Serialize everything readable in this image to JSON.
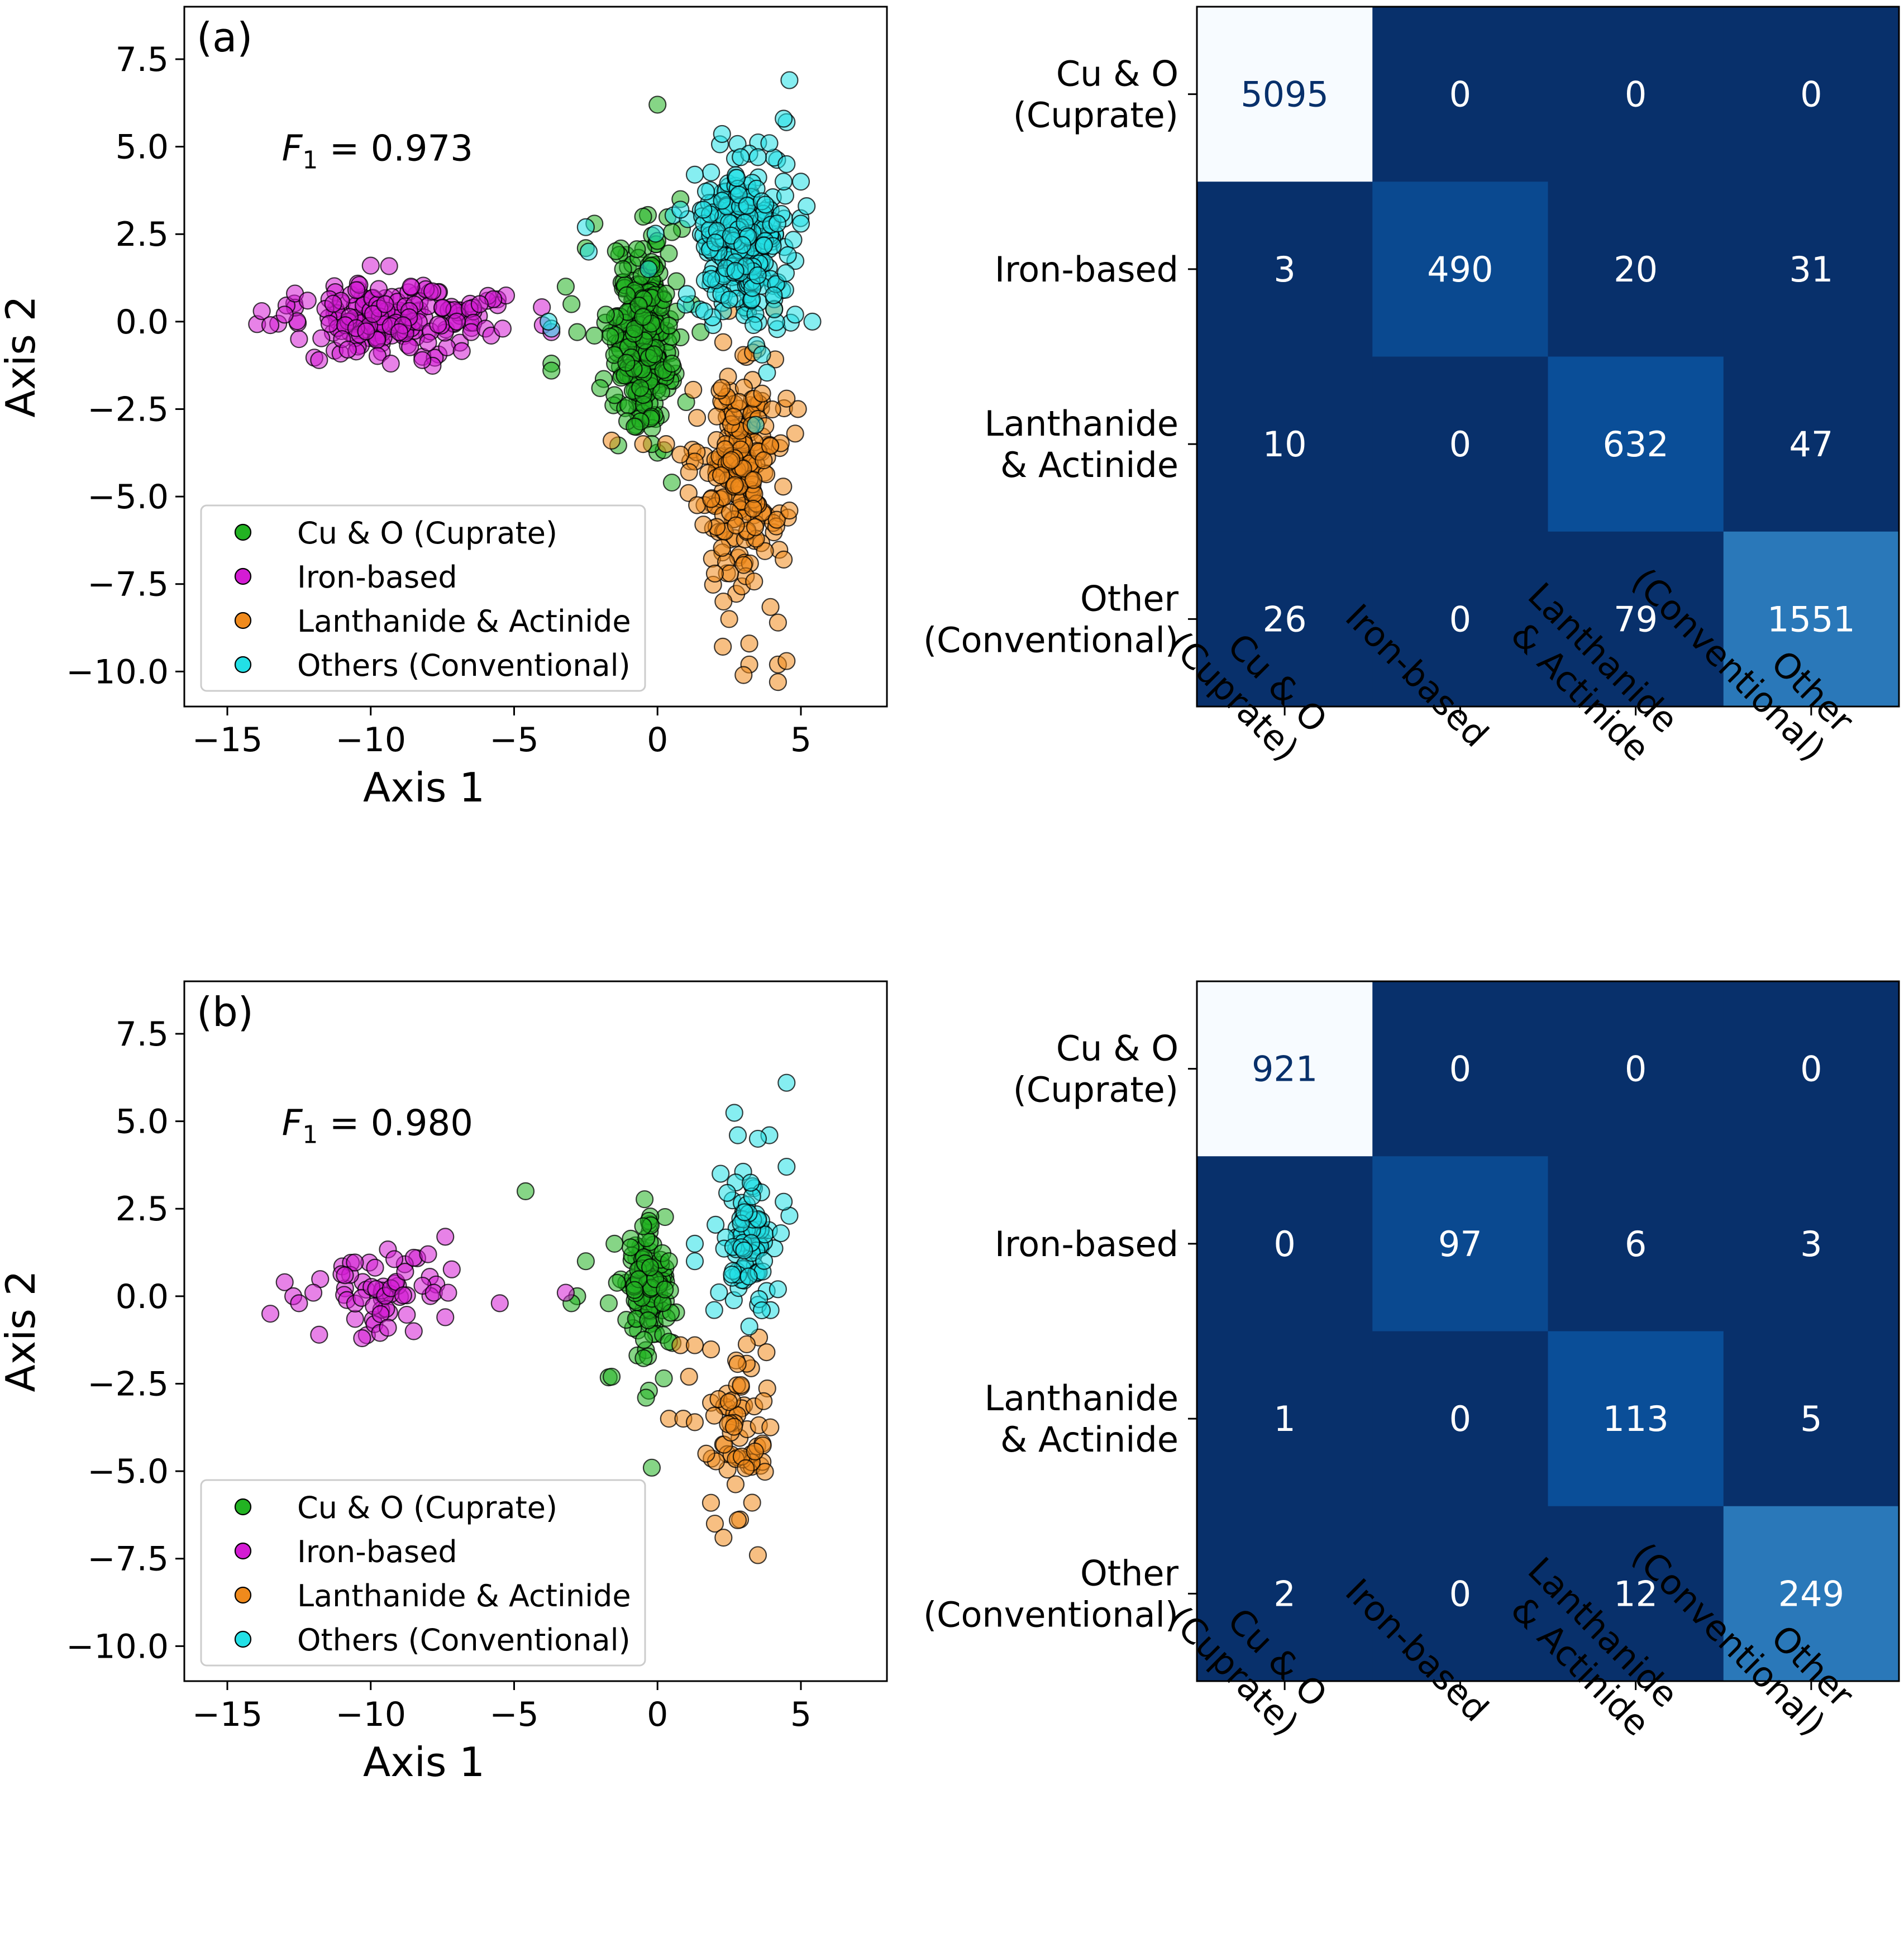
{
  "chart_data": [
    {
      "panel_label": "(a)",
      "type": "scatter",
      "xlabel": "Axis 1",
      "ylabel": "Axis 2",
      "xlim": [
        -16.5,
        8.0
      ],
      "ylim": [
        -11.0,
        9.0
      ],
      "xticks": [
        -15,
        -10,
        -5,
        0,
        5
      ],
      "xtick_labels": [
        "−15",
        "−10",
        "−5",
        "0",
        "5"
      ],
      "yticks": [
        7.5,
        5.0,
        2.5,
        0.0,
        -2.5,
        -5.0,
        -7.5,
        -10.0
      ],
      "ytick_labels": [
        "7.5",
        "5.0",
        "2.5",
        "0.0",
        "−2.5",
        "−5.0",
        "−7.5",
        "−10.0"
      ],
      "annotation": {
        "prefix": "F",
        "subscript": "1",
        "suffix": " =  0.973"
      },
      "legend": {
        "position": "lower-left",
        "entries": [
          "Cu & O (Cuprate)",
          "Iron-based",
          "Lanthanide & Actinide",
          "Others (Conventional)"
        ]
      },
      "series": [
        {
          "name": "Cu & O (Cuprate)",
          "color": "#22b322",
          "points": [
            [
              0.0,
              6.2
            ],
            [
              -2.2,
              2.8
            ],
            [
              -2.5,
              2.1
            ],
            [
              -3.2,
              1.0
            ],
            [
              -3.0,
              0.5
            ],
            [
              -2.8,
              -0.3
            ],
            [
              -3.7,
              -1.2
            ],
            [
              -3.7,
              -1.4
            ],
            [
              -2.0,
              -1.9
            ],
            [
              -1.5,
              -2.1
            ],
            [
              -0.8,
              -3.0
            ],
            [
              -0.2,
              -3.5
            ],
            [
              0.5,
              -4.6
            ],
            [
              -1.2,
              1.5
            ],
            [
              -1.8,
              0.2
            ],
            [
              -2.2,
              -0.4
            ],
            [
              0.3,
              0.8
            ],
            [
              0.5,
              -1.2
            ],
            [
              1.0,
              -2.3
            ],
            [
              0.8,
              3.5
            ],
            [
              -0.5,
              3.0
            ],
            [
              1.2,
              0.5
            ],
            [
              1.5,
              -0.3
            ]
          ],
          "cluster": {
            "cx": -0.5,
            "cy": -0.5,
            "sx": 0.5,
            "sy": 1.3,
            "n": 300
          }
        },
        {
          "name": "Iron-based",
          "color": "#d41cd4",
          "points": [
            [
              -13.8,
              0.3
            ],
            [
              -13.5,
              -0.1
            ],
            [
              -13.0,
              0.2
            ],
            [
              -12.5,
              -0.5
            ],
            [
              -12.2,
              0.6
            ],
            [
              -11.8,
              -1.1
            ],
            [
              -11.0,
              -0.5
            ],
            [
              -10.5,
              0.9
            ],
            [
              -10.0,
              1.6
            ],
            [
              -9.5,
              0.5
            ],
            [
              -9.0,
              -0.3
            ],
            [
              -8.6,
              1.0
            ],
            [
              -8.0,
              -0.6
            ],
            [
              -7.5,
              0.4
            ],
            [
              -7.0,
              0.0
            ],
            [
              -6.5,
              -0.3
            ],
            [
              -6.2,
              0.5
            ],
            [
              -6.0,
              -0.2
            ],
            [
              -5.8,
              -0.4
            ],
            [
              -5.4,
              -0.2
            ],
            [
              -4.0,
              -0.1
            ],
            [
              -3.7,
              -0.3
            ],
            [
              -8.2,
              -1.1
            ],
            [
              -9.3,
              -1.2
            ],
            [
              -10.8,
              -0.8
            ]
          ],
          "cluster": {
            "cx": -9.3,
            "cy": 0.1,
            "sx": 1.7,
            "sy": 0.5,
            "n": 180
          }
        },
        {
          "name": "Lanthanide & Actinide",
          "color": "#f08a1c",
          "points": [
            [
              -1.6,
              -3.4
            ],
            [
              -0.5,
              -3.5
            ],
            [
              0.3,
              -3.5
            ],
            [
              1.3,
              -4.0
            ],
            [
              1.6,
              -5.8
            ],
            [
              2.0,
              -7.2
            ],
            [
              2.3,
              -8.0
            ],
            [
              2.5,
              -8.5
            ],
            [
              3.2,
              -9.2
            ],
            [
              3.2,
              -9.8
            ],
            [
              3.0,
              -10.1
            ],
            [
              4.2,
              -9.8
            ],
            [
              4.5,
              -9.7
            ],
            [
              4.2,
              -10.3
            ],
            [
              4.2,
              -8.6
            ],
            [
              4.4,
              -6.8
            ],
            [
              4.6,
              -5.4
            ],
            [
              4.8,
              -3.2
            ],
            [
              4.5,
              -2.2
            ],
            [
              0.8,
              -3.8
            ],
            [
              1.1,
              -4.3
            ]
          ],
          "cluster": {
            "cx": 2.9,
            "cy": -4.2,
            "sx": 0.7,
            "sy": 1.7,
            "n": 220
          }
        },
        {
          "name": "Others (Conventional)",
          "color": "#22e0e6",
          "points": [
            [
              4.6,
              6.9
            ],
            [
              4.5,
              5.7
            ],
            [
              4.4,
              5.8
            ],
            [
              3.9,
              5.1
            ],
            [
              3.2,
              4.8
            ],
            [
              3.5,
              4.7
            ],
            [
              2.9,
              4.7
            ],
            [
              4.5,
              4.5
            ],
            [
              5.0,
              4.0
            ],
            [
              5.2,
              3.3
            ],
            [
              5.0,
              2.8
            ],
            [
              5.4,
              0.0
            ],
            [
              4.8,
              0.2
            ],
            [
              -2.5,
              2.7
            ],
            [
              -2.4,
              2.0
            ],
            [
              0.8,
              3.2
            ],
            [
              1.3,
              4.2
            ],
            [
              1.6,
              3.2
            ],
            [
              -3.7,
              -0.2
            ],
            [
              -3.8,
              0.0
            ]
          ],
          "cluster": {
            "cx": 2.9,
            "cy": 2.2,
            "sx": 0.8,
            "sy": 1.2,
            "n": 280
          }
        }
      ]
    },
    {
      "type": "heatmap",
      "row_labels": [
        [
          "Cu & O",
          "(Cuprate)"
        ],
        [
          "Iron-based"
        ],
        [
          "Lanthanide",
          "& Actinide"
        ],
        [
          "Other",
          "(Conventional)"
        ]
      ],
      "col_labels": [
        [
          "Cu & O",
          "(Cuprate)"
        ],
        [
          "Iron-based"
        ],
        [
          "Lanthanide",
          "& Actinide"
        ],
        [
          "Other",
          "(Conventional)"
        ]
      ],
      "values": [
        [
          5095,
          0,
          0,
          0
        ],
        [
          3,
          490,
          20,
          31
        ],
        [
          10,
          0,
          632,
          47
        ],
        [
          26,
          0,
          79,
          1551
        ]
      ],
      "cell_colors": [
        [
          "#f7fbff",
          "#08306b",
          "#08306b",
          "#08306b"
        ],
        [
          "#08306b",
          "#0a4990",
          "#08306b",
          "#08306b"
        ],
        [
          "#08306b",
          "#08306b",
          "#0a4e98",
          "#08306b"
        ],
        [
          "#08306b",
          "#08306b",
          "#08306b",
          "#2a78b9"
        ]
      ]
    },
    {
      "panel_label": "(b)",
      "type": "scatter",
      "xlabel": "Axis 1",
      "ylabel": "Axis 2",
      "xlim": [
        -16.5,
        8.0
      ],
      "ylim": [
        -11.0,
        9.0
      ],
      "xticks": [
        -15,
        -10,
        -5,
        0,
        5
      ],
      "xtick_labels": [
        "−15",
        "−10",
        "−5",
        "0",
        "5"
      ],
      "yticks": [
        7.5,
        5.0,
        2.5,
        0.0,
        -2.5,
        -5.0,
        -7.5,
        -10.0
      ],
      "ytick_labels": [
        "7.5",
        "5.0",
        "2.5",
        "0.0",
        "−2.5",
        "−5.0",
        "−7.5",
        "−10.0"
      ],
      "annotation": {
        "prefix": "F",
        "subscript": "1",
        "suffix": " =  0.980"
      },
      "legend": {
        "position": "lower-left",
        "entries": [
          "Cu & O (Cuprate)",
          "Iron-based",
          "Lanthanide & Actinide",
          "Others (Conventional)"
        ]
      },
      "series": [
        {
          "name": "Cu & O (Cuprate)",
          "color": "#22b322",
          "points": [
            [
              -4.6,
              3.0
            ],
            [
              -2.5,
              1.0
            ],
            [
              -2.8,
              0.0
            ],
            [
              -3.0,
              -0.2
            ],
            [
              -1.5,
              1.5
            ],
            [
              -1.7,
              -0.2
            ],
            [
              -1.6,
              -2.3
            ],
            [
              -0.3,
              -2.7
            ],
            [
              -0.2,
              -4.9
            ],
            [
              -0.4,
              -2.9
            ],
            [
              -0.5,
              2.0
            ],
            [
              0.4,
              1.0
            ],
            [
              0.4,
              -1.3
            ]
          ],
          "cluster": {
            "cx": -0.4,
            "cy": 0.1,
            "sx": 0.4,
            "sy": 0.9,
            "n": 120
          }
        },
        {
          "name": "Iron-based",
          "color": "#d41cd4",
          "points": [
            [
              -13.5,
              -0.5
            ],
            [
              -13.0,
              0.4
            ],
            [
              -12.7,
              0.0
            ],
            [
              -12.5,
              -0.2
            ],
            [
              -12.0,
              0.1
            ],
            [
              -11.8,
              -1.1
            ],
            [
              -10.9,
              0.6
            ],
            [
              -10.3,
              -1.2
            ],
            [
              -9.4,
              -0.9
            ],
            [
              -8.8,
              0.7
            ],
            [
              -8.5,
              1.1
            ],
            [
              -8.0,
              1.2
            ],
            [
              -7.8,
              0.1
            ],
            [
              -7.4,
              1.7
            ],
            [
              -7.4,
              -0.6
            ],
            [
              -7.3,
              0.1
            ],
            [
              -8.5,
              -1.0
            ],
            [
              -5.5,
              -0.2
            ],
            [
              -3.2,
              0.1
            ]
          ],
          "cluster": {
            "cx": -9.8,
            "cy": 0.1,
            "sx": 1.0,
            "sy": 0.45,
            "n": 50
          }
        },
        {
          "name": "Lanthanide & Actinide",
          "color": "#f08a1c",
          "points": [
            [
              0.8,
              -1.4
            ],
            [
              1.3,
              -1.4
            ],
            [
              1.1,
              -2.3
            ],
            [
              0.4,
              -3.5
            ],
            [
              0.9,
              -3.5
            ],
            [
              1.3,
              -3.6
            ],
            [
              1.7,
              -4.5
            ],
            [
              2.0,
              -6.5
            ],
            [
              2.3,
              -6.9
            ],
            [
              2.8,
              -6.4
            ],
            [
              3.5,
              -7.4
            ],
            [
              3.3,
              -5.9
            ],
            [
              3.7,
              -3.0
            ],
            [
              3.8,
              -1.6
            ]
          ],
          "cluster": {
            "cx": 2.8,
            "cy": -3.6,
            "sx": 0.5,
            "sy": 1.1,
            "n": 60
          }
        },
        {
          "name": "Others (Conventional)",
          "color": "#22e0e6",
          "points": [
            [
              4.5,
              6.1
            ],
            [
              3.9,
              4.6
            ],
            [
              3.5,
              4.5
            ],
            [
              2.8,
              4.6
            ],
            [
              4.5,
              3.7
            ],
            [
              4.6,
              2.3
            ],
            [
              4.4,
              2.7
            ],
            [
              2.2,
              3.5
            ],
            [
              1.3,
              1.0
            ],
            [
              1.3,
              1.5
            ],
            [
              4.3,
              1.8
            ],
            [
              4.2,
              0.2
            ]
          ],
          "cluster": {
            "cx": 3.1,
            "cy": 1.6,
            "sx": 0.5,
            "sy": 1.1,
            "n": 90
          }
        }
      ]
    },
    {
      "type": "heatmap",
      "row_labels": [
        [
          "Cu & O",
          "(Cuprate)"
        ],
        [
          "Iron-based"
        ],
        [
          "Lanthanide",
          "& Actinide"
        ],
        [
          "Other",
          "(Conventional)"
        ]
      ],
      "col_labels": [
        [
          "Cu & O",
          "(Cuprate)"
        ],
        [
          "Iron-based"
        ],
        [
          "Lanthanide",
          "& Actinide"
        ],
        [
          "Other",
          "(Conventional)"
        ]
      ],
      "values": [
        [
          921,
          0,
          0,
          0
        ],
        [
          0,
          97,
          6,
          3
        ],
        [
          1,
          0,
          113,
          5
        ],
        [
          2,
          0,
          12,
          249
        ]
      ],
      "cell_colors": [
        [
          "#f7fbff",
          "#08306b",
          "#08306b",
          "#08306b"
        ],
        [
          "#08306b",
          "#0a4990",
          "#08306b",
          "#08306b"
        ],
        [
          "#08306b",
          "#08306b",
          "#0a4e98",
          "#08306b"
        ],
        [
          "#08306b",
          "#08306b",
          "#08306b",
          "#2a78b9"
        ]
      ]
    }
  ]
}
